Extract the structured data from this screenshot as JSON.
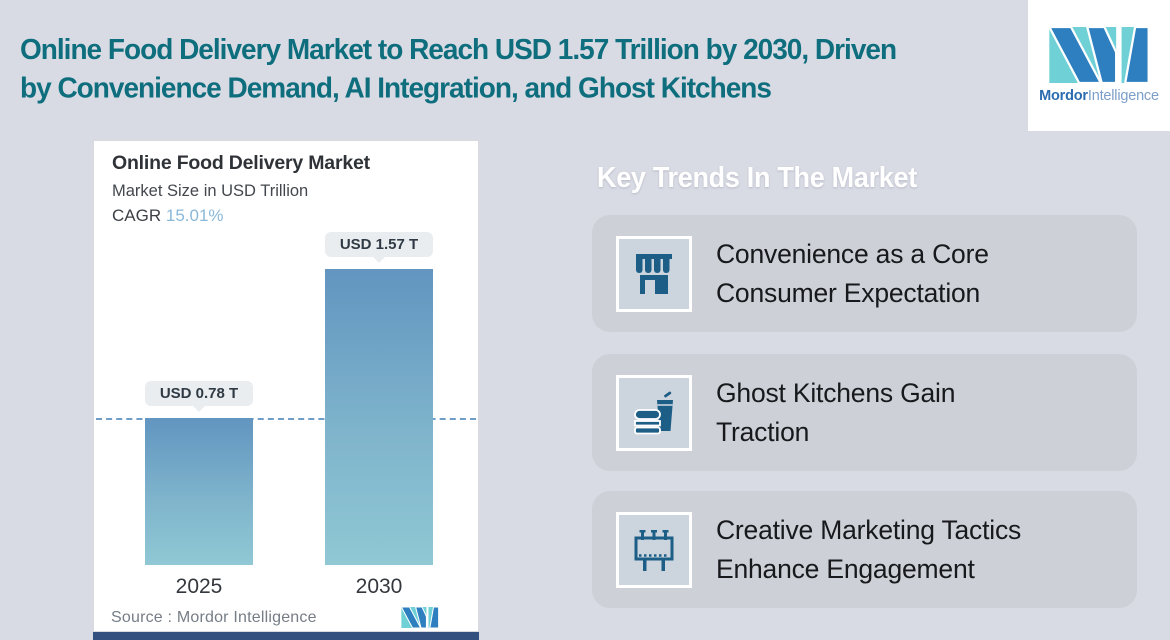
{
  "page": {
    "background_color": "#d9dbe4"
  },
  "header": {
    "title": "Online Food Delivery Market to Reach USD 1.57 Trillion by 2030, Driven\nby Convenience Demand, AI Integration, and Ghost Kitchens",
    "title_color": "#0e6e7d"
  },
  "brand": {
    "logo_icon": "mordor-intelligence-logo",
    "name_bold": "Mordor",
    "name_light": "Intelligence",
    "logo_blue": "#2e7fc0",
    "logo_teal": "#6fd1d6"
  },
  "chart_card": {
    "title": "Online Food Delivery Market",
    "subtitle": "Market Size in USD Trillion",
    "cagr_label": "CAGR",
    "cagr_value": "15.01%",
    "cagr_value_color": "#8ab8d8",
    "source": "Source :  Mordor Intelligence",
    "bars": [
      {
        "year": "2025",
        "label": "USD 0.78 T",
        "value": 0.78
      },
      {
        "year": "2030",
        "label": "USD 1.57 T",
        "value": 1.57
      }
    ]
  },
  "chart_data": {
    "type": "bar",
    "title": "Online Food Delivery Market",
    "subtitle": "Market Size in USD Trillion",
    "categories": [
      "2025",
      "2030"
    ],
    "values": [
      0.78,
      1.57
    ],
    "data_labels": [
      "USD 0.78 T",
      "USD 1.57 T"
    ],
    "cagr": "15.01%",
    "ylabel": "Market Size in USD Trillion",
    "ylim": [
      0,
      1.57
    ],
    "grid": false,
    "reference_line_at": 0.78,
    "bar_color_gradient": [
      "#6295c0",
      "#90c8d4"
    ],
    "source": "Mordor Intelligence"
  },
  "trends": {
    "heading": "Key Trends In The Market",
    "cards": [
      {
        "icon": "storefront-icon",
        "text": "Convenience as a Core\nConsumer Expectation"
      },
      {
        "icon": "fast-food-icon",
        "text": "Ghost Kitchens Gain\nTraction"
      },
      {
        "icon": "billboard-icon",
        "text": "Creative Marketing Tactics\nEnhance Engagement"
      }
    ],
    "icon_color": "#1d5e86",
    "card_color": "#cdd0d6"
  }
}
